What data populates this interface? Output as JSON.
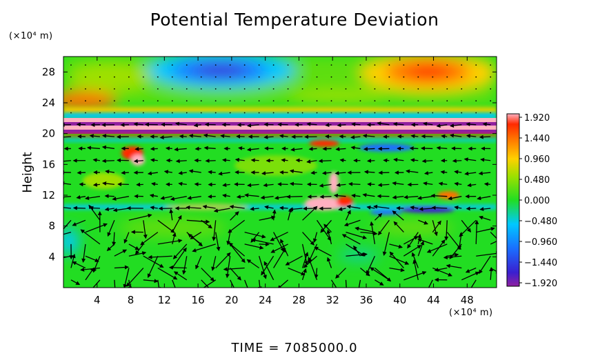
{
  "chart_data": {
    "type": "heatmap",
    "title": "Potential Temperature Deviation",
    "ylabel": "Height",
    "x_unit": "(×10⁴ m)",
    "y_unit": "(×10⁴ m)",
    "footer": "TIME  =  7085000.0",
    "xlim": [
      0,
      51.5
    ],
    "ylim": [
      0,
      30
    ],
    "x_ticks": [
      4,
      8,
      12,
      16,
      20,
      24,
      28,
      32,
      36,
      40,
      44,
      48
    ],
    "y_ticks": [
      4,
      8,
      12,
      16,
      20,
      24,
      28
    ],
    "colorbar": {
      "ticks": [
        "1.920",
        "1.440",
        "0.960",
        "0.480",
        "0.000",
        "−0.480",
        "−0.960",
        "−1.440",
        "−1.920"
      ],
      "range": [
        -1.92,
        1.92
      ]
    },
    "grid": false,
    "legend": "colorbar-right",
    "features": [
      {
        "x": 19.5,
        "y": 28,
        "value": -1.4,
        "kind": "cold anomaly"
      },
      {
        "x": 43,
        "y": 27.5,
        "value": 1.4,
        "kind": "warm anomaly"
      },
      {
        "x": 2,
        "y": 24,
        "value": 1.4,
        "kind": "warm anomaly"
      },
      {
        "x": 0,
        "y": 21,
        "value": -1.9,
        "kind": "banded layer"
      },
      {
        "x": 9,
        "y": 17,
        "value": 1.5,
        "kind": "warm anomaly"
      },
      {
        "x": 31.5,
        "y": 11,
        "value": 1.9,
        "kind": "warm plume"
      },
      {
        "x": 44,
        "y": 9.5,
        "value": -1.6,
        "kind": "cold streak"
      }
    ]
  },
  "colors": {
    "cold": "#3a1fd0",
    "cool": "#00c8ff",
    "neutral": "#22dd22",
    "warm": "#ffd000",
    "hot": "#ff2a00",
    "max": "#ffb0c0",
    "min": "#9020a0"
  }
}
